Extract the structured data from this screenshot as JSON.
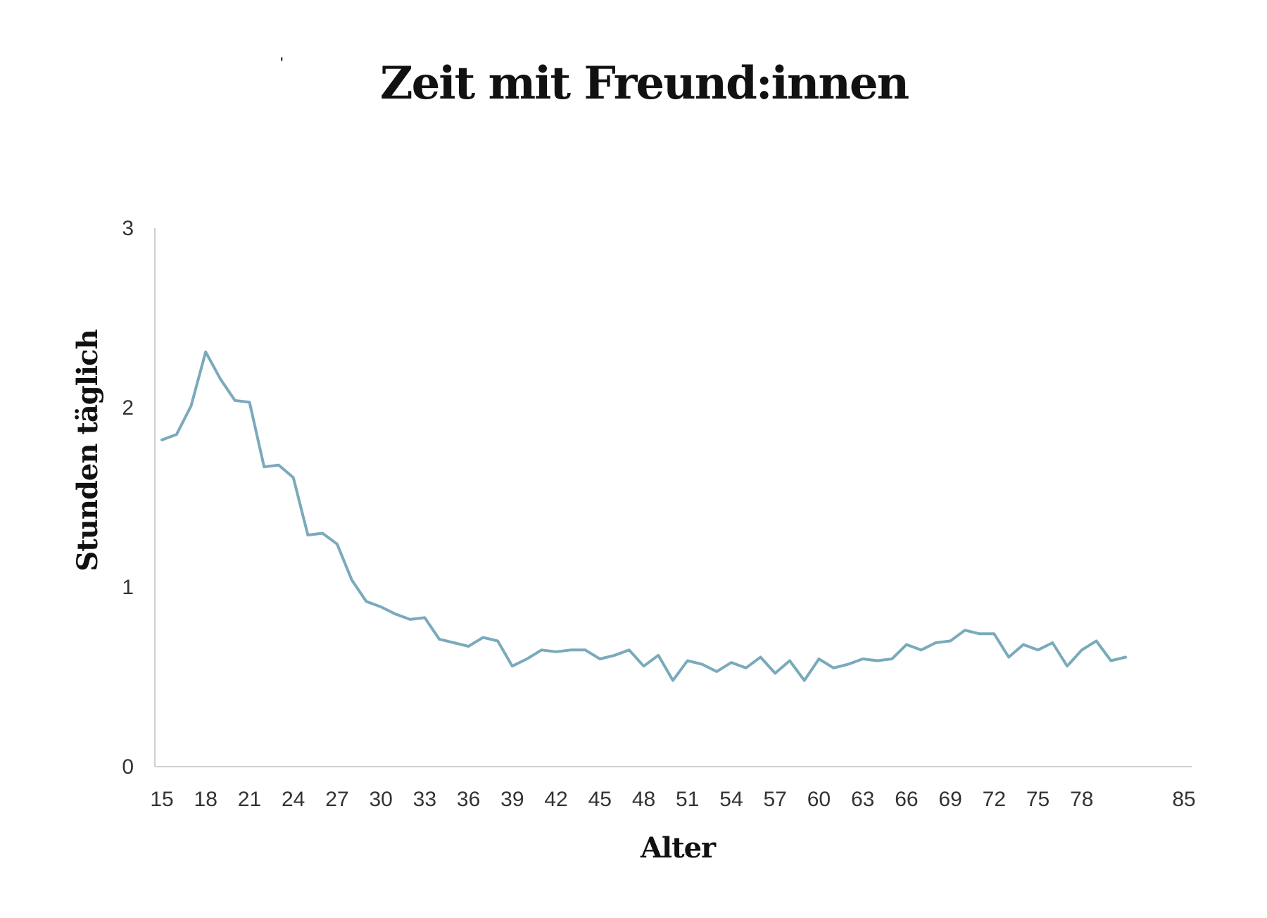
{
  "chart_data": {
    "type": "line",
    "title": "Zeit mit Freund:innen",
    "xlabel": "Alter",
    "ylabel": "Stunden täglich",
    "xlim": [
      15,
      85
    ],
    "ylim": [
      0,
      3
    ],
    "x_ticks": [
      "15",
      "18",
      "21",
      "24",
      "27",
      "30",
      "33",
      "36",
      "39",
      "42",
      "45",
      "48",
      "51",
      "54",
      "57",
      "60",
      "63",
      "66",
      "69",
      "72",
      "75",
      "78",
      "85"
    ],
    "y_ticks": [
      "0",
      "1",
      "2",
      "3"
    ],
    "grid": false,
    "legend": "none",
    "line_color": "#7aaabb",
    "series": [
      {
        "x": [
          15,
          16,
          17,
          18,
          19,
          20,
          21,
          22,
          23,
          24,
          25,
          26,
          27,
          28,
          29,
          30,
          31,
          32,
          33,
          34,
          35,
          36,
          37,
          38,
          39,
          40,
          41,
          42,
          43,
          44,
          45,
          46,
          47,
          48,
          49,
          50,
          51,
          52,
          53,
          54,
          55,
          56,
          57,
          58,
          59,
          60,
          61,
          62,
          63,
          64,
          65,
          66,
          67,
          68,
          69,
          70,
          71,
          72,
          73,
          74,
          75,
          76,
          77,
          78,
          79,
          80,
          81
        ],
        "values": [
          1.82,
          1.85,
          2.01,
          2.31,
          2.16,
          2.04,
          2.03,
          1.67,
          1.68,
          1.61,
          1.29,
          1.3,
          1.24,
          1.04,
          0.92,
          0.89,
          0.85,
          0.82,
          0.83,
          0.71,
          0.69,
          0.67,
          0.72,
          0.7,
          0.56,
          0.6,
          0.65,
          0.64,
          0.65,
          0.65,
          0.6,
          0.62,
          0.65,
          0.56,
          0.62,
          0.48,
          0.59,
          0.57,
          0.53,
          0.58,
          0.55,
          0.61,
          0.52,
          0.59,
          0.48,
          0.6,
          0.55,
          0.57,
          0.6,
          0.59,
          0.6,
          0.68,
          0.65,
          0.69,
          0.7,
          0.76,
          0.74,
          0.74,
          0.61,
          0.68,
          0.65,
          0.69,
          0.56,
          0.65,
          0.7,
          0.59,
          0.61
        ]
      }
    ]
  }
}
